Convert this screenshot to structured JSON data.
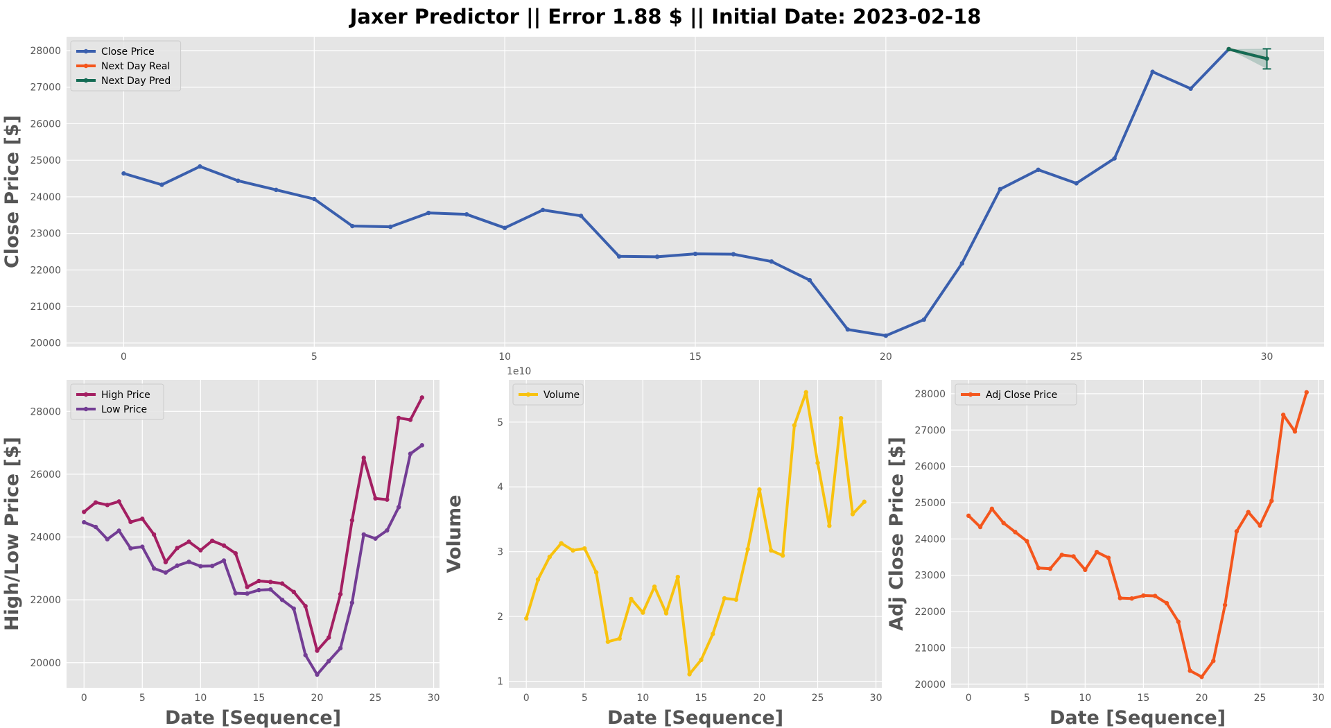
{
  "figure": {
    "title": "Jaxer Predictor || Error 1.88 $ || Initial Date: 2023-02-18"
  },
  "colors": {
    "background": "#e5e5e5",
    "grid": "#ffffff",
    "close": "#3a5fad",
    "next_real": "#f4561d",
    "next_pred": "#136b54",
    "high": "#a31f62",
    "low": "#733d94",
    "volume": "#f8c20f",
    "adj_close": "#f4561d"
  },
  "chart_data": [
    {
      "id": "main",
      "type": "line",
      "title": "Jaxer Predictor || Error 1.88 $ || Initial Date: 2023-02-18",
      "xlabel": "",
      "ylabel": "Close Price [$]",
      "xlim": [
        -1.5,
        31.5
      ],
      "ylim": [
        19900,
        28380
      ],
      "xticks": [
        0,
        5,
        10,
        15,
        20,
        25,
        30
      ],
      "yticks": [
        20000,
        21000,
        22000,
        23000,
        24000,
        25000,
        26000,
        27000,
        28000
      ],
      "grid": true,
      "legend": "top-left",
      "series": [
        {
          "name": "Close Price",
          "color": "#3a5fad",
          "x": [
            0,
            1,
            2,
            3,
            4,
            5,
            6,
            7,
            8,
            9,
            10,
            11,
            12,
            13,
            14,
            15,
            16,
            17,
            18,
            19,
            20,
            21,
            22,
            23,
            24,
            25,
            26,
            27,
            28,
            29
          ],
          "values": [
            24640,
            24330,
            24830,
            24440,
            24190,
            23940,
            23200,
            23180,
            23560,
            23520,
            23150,
            23640,
            23480,
            22370,
            22360,
            22440,
            22430,
            22230,
            21720,
            20370,
            20200,
            20640,
            22180,
            24210,
            24740,
            24370,
            25050,
            27420,
            26960,
            28040
          ]
        },
        {
          "name": "Next Day Real",
          "color": "#f4561d",
          "x": [
            29,
            30
          ],
          "values": [
            28040,
            27780
          ]
        },
        {
          "name": "Next Day Pred",
          "color": "#136b54",
          "x": [
            29,
            30
          ],
          "values": [
            28040,
            27780
          ],
          "error_bar": {
            "x": 30,
            "low": 27500,
            "high": 28050
          }
        }
      ]
    },
    {
      "id": "highlow",
      "type": "line",
      "xlabel": "Date [Sequence]",
      "ylabel": "High/Low Price [$]",
      "xlim": [
        -1.5,
        30.5
      ],
      "ylim": [
        19200,
        29000
      ],
      "xticks": [
        0,
        5,
        10,
        15,
        20,
        25,
        30
      ],
      "yticks": [
        20000,
        22000,
        24000,
        26000,
        28000
      ],
      "grid": true,
      "legend": "top-left",
      "series": [
        {
          "name": "High Price",
          "color": "#a31f62",
          "values": [
            24800,
            25100,
            25020,
            25130,
            24480,
            24580,
            24080,
            23200,
            23650,
            23850,
            23580,
            23880,
            23730,
            23480,
            22410,
            22600,
            22570,
            22520,
            22250,
            21800,
            20380,
            20800,
            22180,
            24530,
            26520,
            25230,
            25190,
            27790,
            27730,
            28440
          ]
        },
        {
          "name": "Low Price",
          "color": "#733d94",
          "values": [
            24470,
            24320,
            23930,
            24200,
            23640,
            23690,
            23000,
            22870,
            23090,
            23210,
            23070,
            23080,
            23250,
            22210,
            22200,
            22310,
            22330,
            22000,
            21720,
            20240,
            19620,
            20050,
            20460,
            21910,
            24080,
            23950,
            24210,
            24950,
            26650,
            26920
          ]
        }
      ]
    },
    {
      "id": "volume",
      "type": "line",
      "xlabel": "Date [Sequence]",
      "ylabel": "Volume",
      "offset_text": "1e10",
      "xlim": [
        -1.5,
        30.5
      ],
      "ylim": [
        0.9,
        5.65
      ],
      "xticks": [
        0,
        5,
        10,
        15,
        20,
        25,
        30
      ],
      "yticks": [
        1,
        2,
        3,
        4,
        5
      ],
      "grid": true,
      "legend": "top-left",
      "series": [
        {
          "name": "Volume",
          "color": "#f8c20f",
          "values": [
            1.97,
            2.57,
            2.92,
            3.13,
            3.02,
            3.05,
            2.68,
            1.61,
            1.66,
            2.27,
            2.06,
            2.46,
            2.05,
            2.61,
            1.11,
            1.33,
            1.73,
            2.28,
            2.26,
            3.04,
            3.96,
            3.02,
            2.94,
            4.95,
            5.46,
            4.37,
            3.4,
            5.06,
            3.58,
            3.77
          ]
        }
      ]
    },
    {
      "id": "adjclose",
      "type": "line",
      "xlabel": "Date [Sequence]",
      "ylabel": "Adj Close Price [$]",
      "xlim": [
        -1.5,
        30.5
      ],
      "ylim": [
        19900,
        28380
      ],
      "xticks": [
        0,
        5,
        10,
        15,
        20,
        25,
        30
      ],
      "yticks": [
        20000,
        21000,
        22000,
        23000,
        24000,
        25000,
        26000,
        27000,
        28000
      ],
      "grid": true,
      "legend": "top-left",
      "series": [
        {
          "name": "Adj Close Price",
          "color": "#f4561d",
          "values": [
            24640,
            24330,
            24830,
            24440,
            24190,
            23940,
            23200,
            23180,
            23560,
            23520,
            23150,
            23640,
            23480,
            22370,
            22360,
            22440,
            22430,
            22230,
            21720,
            20370,
            20200,
            20640,
            22180,
            24210,
            24740,
            24370,
            25050,
            27420,
            26960,
            28040
          ]
        }
      ]
    }
  ]
}
